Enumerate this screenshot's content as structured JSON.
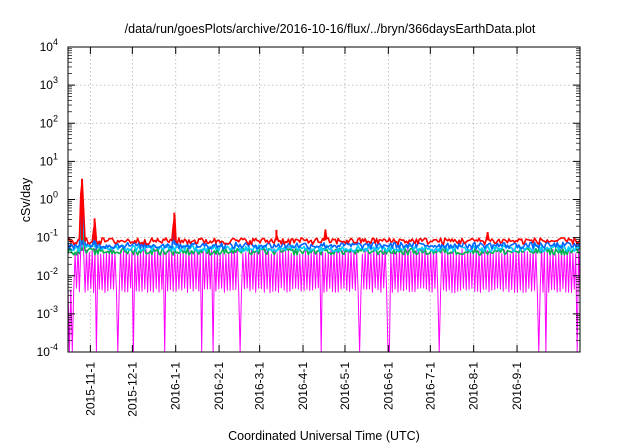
{
  "chart_data": {
    "type": "line",
    "title": "/data/run/goesPlots/archive/2016-10-16/flux/../bryn/366daysEarthData.plot",
    "xlabel": "Coordinated Universal Time (UTC)",
    "ylabel": "cSv/day",
    "yscale": "log",
    "ylim": [
      0.0001,
      10000
    ],
    "xlim": [
      "2015-10-16",
      "2016-10-16"
    ],
    "grid": true,
    "legend": "none",
    "y_ticks": [
      {
        "value": 0.0001,
        "base": "10",
        "exp": "-4"
      },
      {
        "value": 0.001,
        "base": "10",
        "exp": "-3"
      },
      {
        "value": 0.01,
        "base": "10",
        "exp": "-2"
      },
      {
        "value": 0.1,
        "base": "10",
        "exp": "-1"
      },
      {
        "value": 1,
        "base": "10",
        "exp": "0"
      },
      {
        "value": 10,
        "base": "10",
        "exp": "1"
      },
      {
        "value": 100,
        "base": "10",
        "exp": "2"
      },
      {
        "value": 1000,
        "base": "10",
        "exp": "3"
      },
      {
        "value": 10000,
        "base": "10",
        "exp": "4"
      }
    ],
    "x_ticks": [
      {
        "date": "2015-11-01",
        "label": "2015-11-1"
      },
      {
        "date": "2015-12-01",
        "label": "2015-12-1"
      },
      {
        "date": "2016-01-01",
        "label": "2016-1-1"
      },
      {
        "date": "2016-02-01",
        "label": "2016-2-1"
      },
      {
        "date": "2016-03-01",
        "label": "2016-3-1"
      },
      {
        "date": "2016-04-01",
        "label": "2016-4-1"
      },
      {
        "date": "2016-05-01",
        "label": "2016-5-1"
      },
      {
        "date": "2016-06-01",
        "label": "2016-6-1"
      },
      {
        "date": "2016-07-01",
        "label": "2016-7-1"
      },
      {
        "date": "2016-08-01",
        "label": "2016-8-1"
      },
      {
        "date": "2016-09-01",
        "label": "2016-9-1"
      }
    ],
    "series": [
      {
        "color": "#ff0000",
        "baseline": 0.085,
        "spikes": [
          {
            "x": "2015-10-26",
            "y": 3.5
          },
          {
            "x": "2015-11-04",
            "y": 0.32
          },
          {
            "x": "2015-12-31",
            "y": 0.45
          },
          {
            "x": "2016-03-13",
            "y": 0.16
          },
          {
            "x": "2016-04-17",
            "y": 0.16
          },
          {
            "x": "2016-08-11",
            "y": 0.14
          }
        ]
      },
      {
        "color": "#0066ff",
        "baseline": 0.065,
        "spikes": [
          {
            "x": "2015-10-26",
            "y": 2.2
          },
          {
            "x": "2015-11-04",
            "y": 0.2
          },
          {
            "x": "2015-12-31",
            "y": 0.25
          }
        ]
      },
      {
        "color": "#00ccff",
        "baseline": 0.055,
        "spikes": [
          {
            "x": "2015-10-26",
            "y": 1.2
          },
          {
            "x": "2015-11-04",
            "y": 0.14
          }
        ]
      },
      {
        "color": "#00b050",
        "baseline": 0.045,
        "spikes": [
          {
            "x": "2015-10-26",
            "y": 0.6
          }
        ]
      },
      {
        "color": "#ff00ff",
        "baseline_low": 0.004,
        "baseline_high": 0.045,
        "dropouts_to": 0.0001,
        "spikes": [
          {
            "x": "2015-10-26",
            "y": 0.15
          }
        ]
      }
    ]
  }
}
